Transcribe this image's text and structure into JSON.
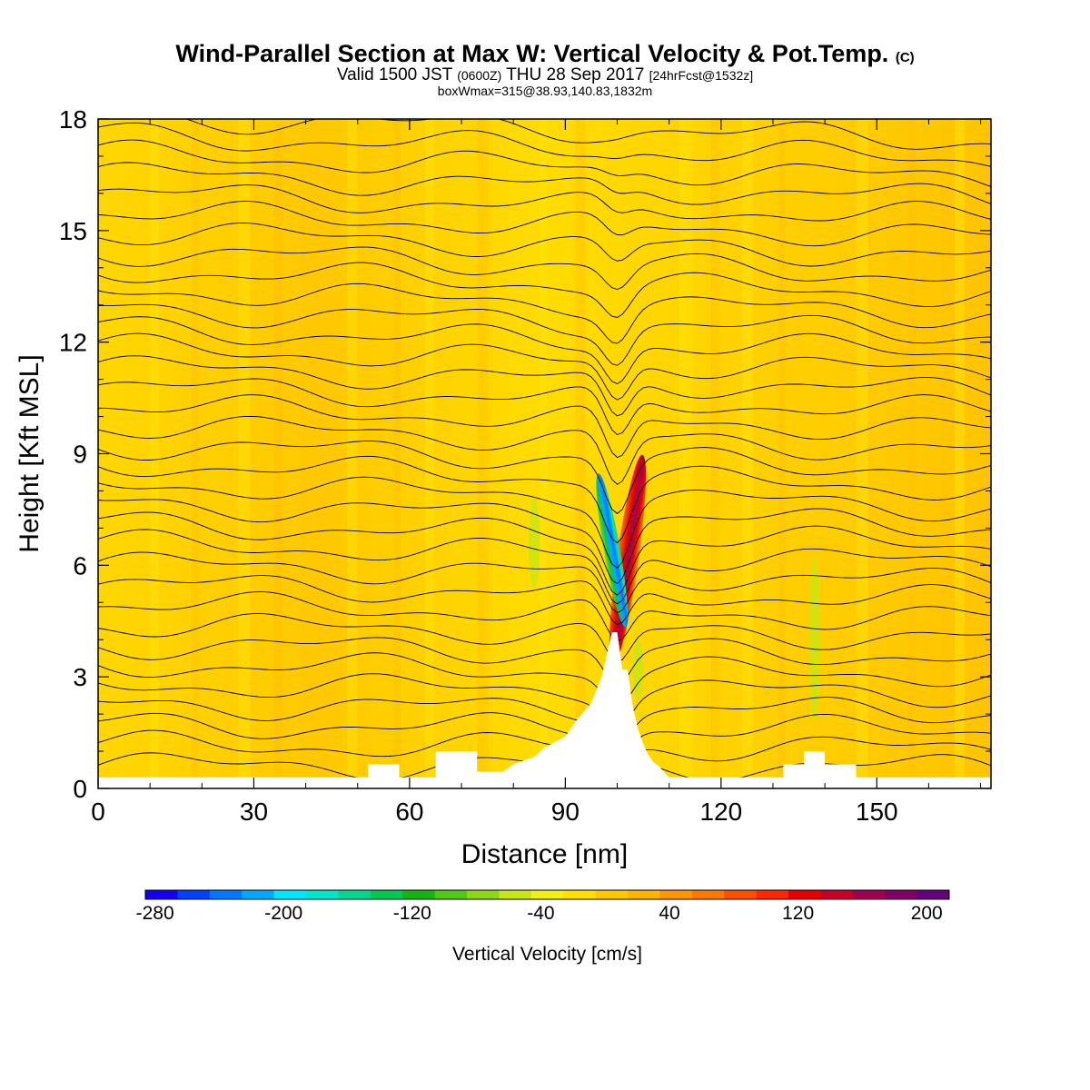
{
  "header": {
    "title_main": "Wind-Parallel Section at Max W: Vertical Velocity & Pot.Temp.",
    "title_mark": "(C)",
    "valid_a": "Valid 1500 JST",
    "valid_zone": "(0600Z)",
    "valid_b": "THU 28 Sep 2017",
    "forecast": "[24hrFcst@1532z]",
    "box_info": "boxWmax=315@38.93,140.83,1832m"
  },
  "chart_data": {
    "type": "heatmap",
    "xlabel": "Distance [nm]",
    "ylabel": "Height [Kft MSL]",
    "xlim": [
      0,
      172
    ],
    "ylim": [
      0,
      18
    ],
    "x_ticks": [
      0,
      30,
      60,
      90,
      120,
      150
    ],
    "y_ticks": [
      0,
      3,
      6,
      9,
      12,
      15,
      18
    ],
    "grid": false,
    "colorbar": {
      "label": "Vertical Velocity [cm/s]",
      "tick_labels": [
        -280,
        -200,
        -120,
        -40,
        40,
        120,
        200
      ],
      "colors": [
        "#1400f0",
        "#0040ff",
        "#0078ff",
        "#00a8ff",
        "#00e6ff",
        "#00e6c8",
        "#00d890",
        "#00c850",
        "#14b414",
        "#50c814",
        "#8cd714",
        "#c8e614",
        "#f0f014",
        "#ffe000",
        "#ffc800",
        "#ffb400",
        "#ff9600",
        "#ff7800",
        "#ff5000",
        "#ff2800",
        "#e60000",
        "#c80028",
        "#a00050",
        "#820064",
        "#64007d"
      ]
    },
    "field": {
      "background_value_cm_s": 10,
      "updraft_core": {
        "x_nm": 102,
        "height_kft": [
          3.3,
          9.0
        ],
        "max_cm_s": 200
      },
      "downdraft_core": {
        "x_nm": 99,
        "height_kft": [
          4.3,
          8.5
        ],
        "min_cm_s": -280
      }
    },
    "terrain": {
      "x_nm": [
        0,
        52,
        52,
        58,
        58,
        65,
        65,
        73,
        73,
        78,
        80,
        84,
        86,
        90,
        92,
        95,
        97,
        98,
        99,
        100,
        101,
        102,
        103,
        104,
        105,
        106,
        107,
        108,
        110,
        110,
        132,
        132,
        136,
        136,
        140,
        140,
        146,
        146,
        172
      ],
      "height_kft": [
        0.3,
        0.3,
        0.65,
        0.65,
        0.3,
        0.3,
        1.0,
        1.0,
        0.45,
        0.45,
        0.65,
        0.85,
        1.1,
        1.4,
        1.8,
        2.3,
        3.0,
        3.6,
        4.2,
        4.2,
        3.2,
        3.2,
        2.2,
        1.6,
        1.2,
        0.9,
        0.7,
        0.6,
        0.3,
        0.3,
        0.3,
        0.65,
        0.65,
        1.0,
        1.0,
        0.65,
        0.65,
        0.3,
        0.3
      ]
    }
  }
}
